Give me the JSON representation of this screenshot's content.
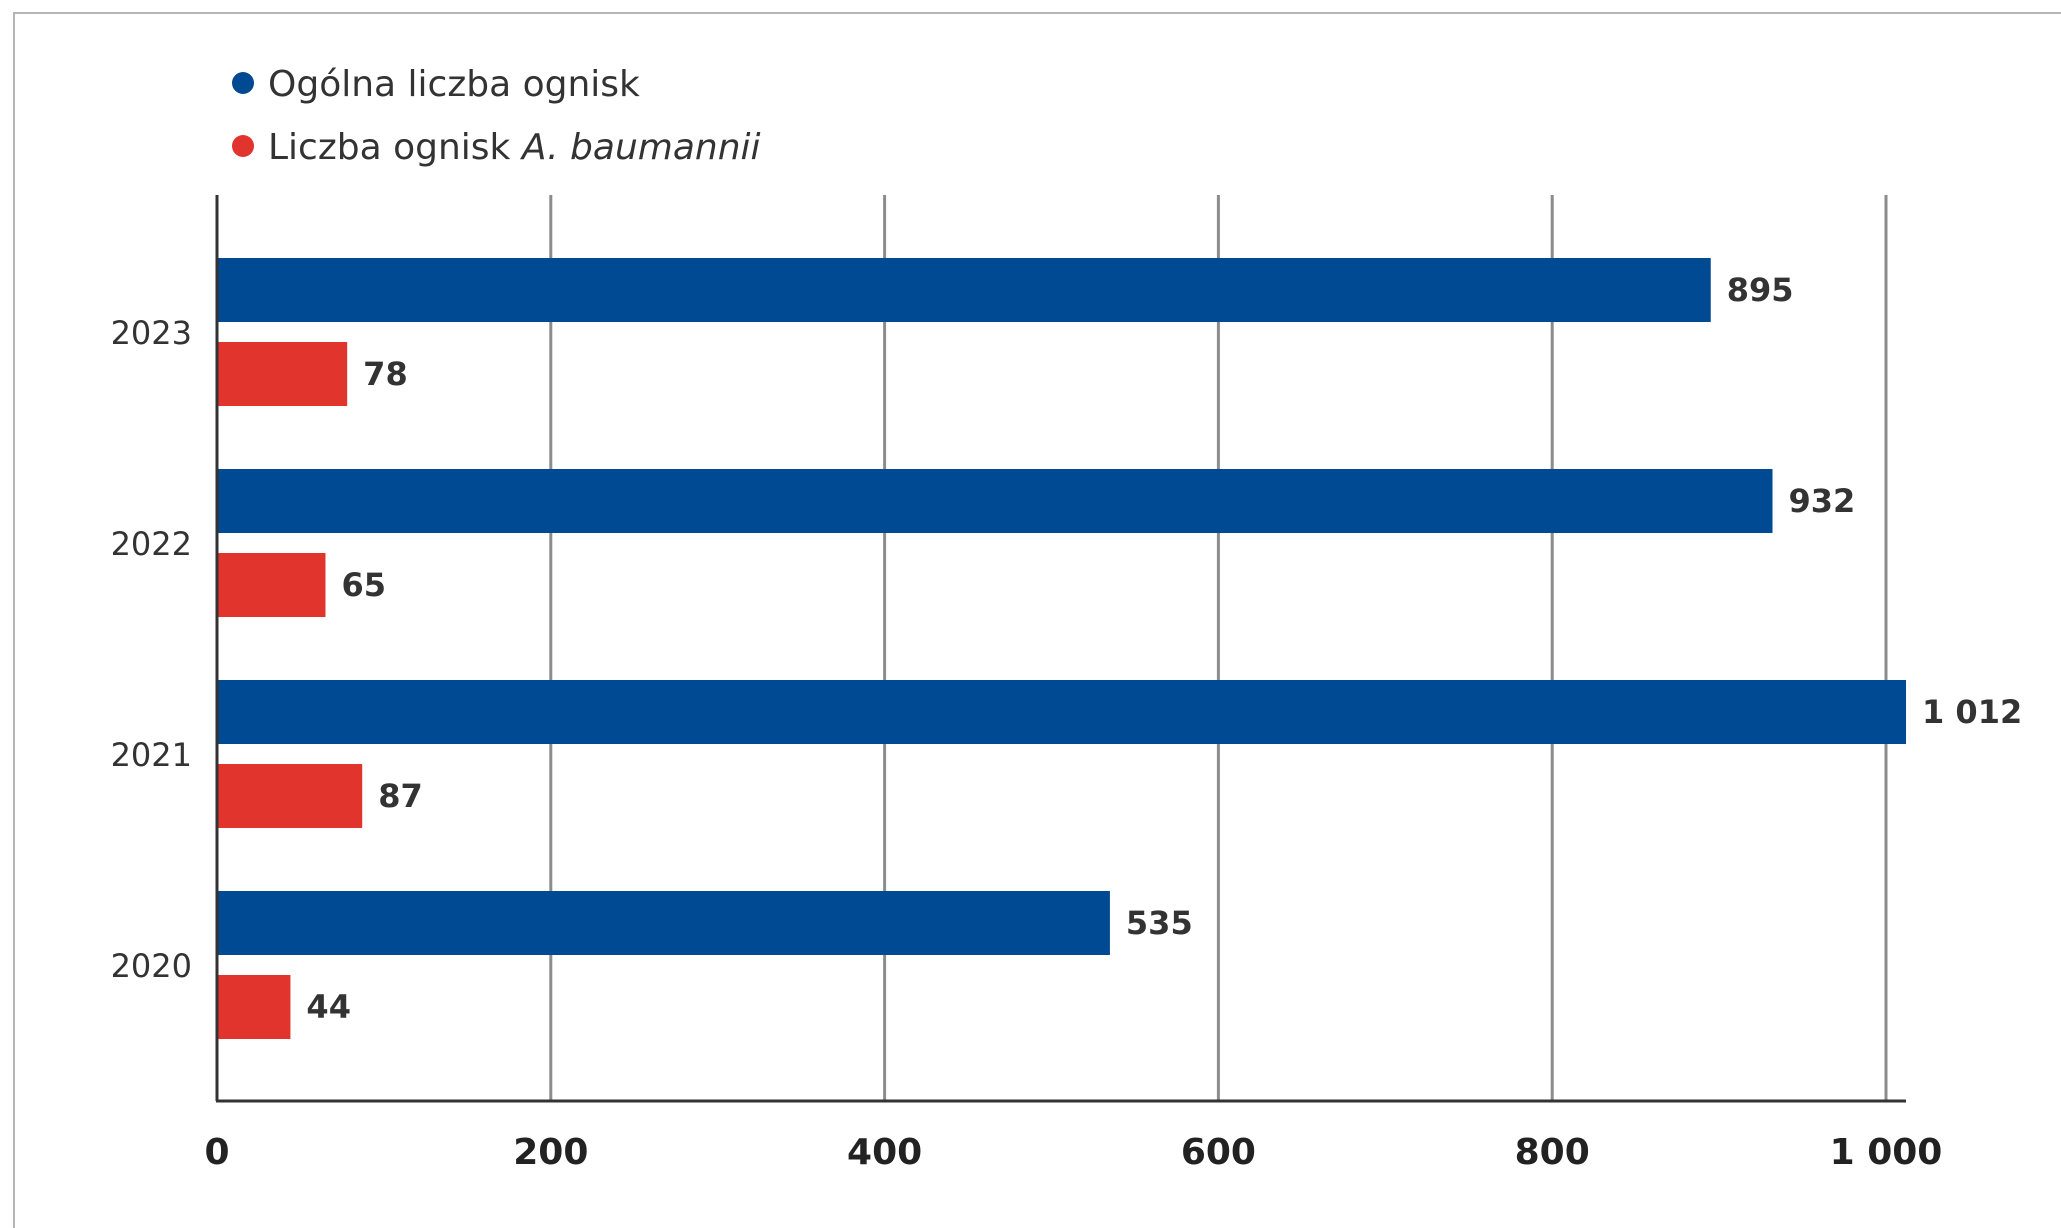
{
  "chart_data": {
    "type": "bar",
    "orientation": "horizontal",
    "categories": [
      "2023",
      "2022",
      "2021",
      "2020"
    ],
    "series": [
      {
        "name": "Ogólna liczba ognisk",
        "color": "#004a93",
        "values": [
          895,
          932,
          1012,
          535
        ],
        "value_labels": [
          "895",
          "932",
          "1 012",
          "535"
        ]
      },
      {
        "name_prefix": "Liczba ognisk ",
        "name_italic": "A. baumannii",
        "color": "#e1342c",
        "values": [
          78,
          65,
          87,
          44
        ],
        "value_labels": [
          "78",
          "65",
          "87",
          "44"
        ]
      }
    ],
    "xlim": [
      0,
      1000
    ],
    "x_ticks": [
      0,
      200,
      400,
      600,
      800,
      1000
    ],
    "x_tick_labels": [
      "0",
      "200",
      "400",
      "600",
      "800",
      "1 000"
    ],
    "grid": "vertical",
    "legend_position": "top-left"
  }
}
